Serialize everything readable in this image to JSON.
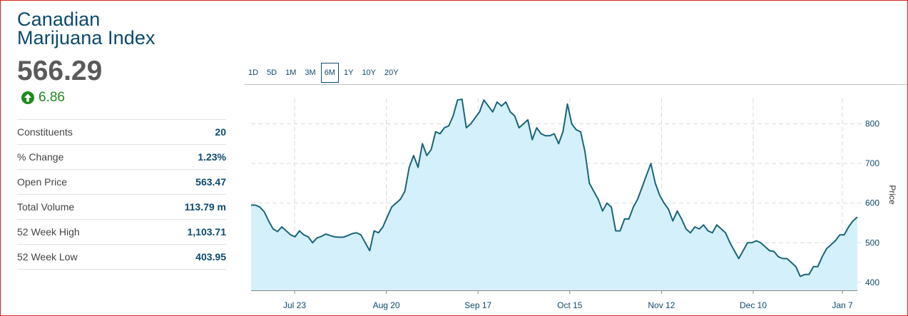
{
  "index": {
    "title_line1": "Canadian",
    "title_line2": "Marijuana Index",
    "price": "566.29",
    "change": "6.86"
  },
  "stats": [
    {
      "label": "Constituents",
      "value": "20"
    },
    {
      "label": "% Change",
      "value": "1.23%"
    },
    {
      "label": "Open Price",
      "value": "563.47"
    },
    {
      "label": "Total Volume",
      "value": "113.79 m"
    },
    {
      "label": "52 Week High",
      "value": "1,103.71"
    },
    {
      "label": "52 Week Low",
      "value": "403.95"
    }
  ],
  "ranges": [
    "1D",
    "5D",
    "1M",
    "3M",
    "6M",
    "1Y",
    "10Y",
    "20Y"
  ],
  "active_range": "6M",
  "colors": {
    "line": "#1a6478",
    "fill": "#d4f0fa",
    "positive": "#1e8a1e",
    "brand": "#0b4a6e"
  },
  "chart_data": {
    "type": "area",
    "ylabel": "Price",
    "ylim": [
      380,
      900
    ],
    "yticks": [
      400,
      500,
      600,
      700,
      800
    ],
    "grid": true,
    "xticks": [
      "Jul 23",
      "Aug 20",
      "Sep 17",
      "Oct 15",
      "Nov 12",
      "Dec 10",
      "Jan 7"
    ],
    "values": [
      595,
      595,
      590,
      578,
      555,
      535,
      528,
      540,
      530,
      520,
      515,
      530,
      520,
      515,
      500,
      512,
      516,
      522,
      518,
      515,
      514,
      514,
      518,
      523,
      525,
      520,
      500,
      480,
      530,
      525,
      540,
      565,
      590,
      600,
      610,
      630,
      690,
      720,
      690,
      750,
      720,
      735,
      780,
      775,
      790,
      795,
      820,
      860,
      862,
      790,
      800,
      815,
      830,
      860,
      845,
      830,
      855,
      845,
      855,
      830,
      820,
      790,
      800,
      810,
      760,
      790,
      775,
      770,
      770,
      775,
      750,
      780,
      850,
      800,
      785,
      780,
      730,
      650,
      630,
      610,
      580,
      600,
      590,
      530,
      530,
      560,
      560,
      590,
      610,
      640,
      670,
      700,
      650,
      620,
      600,
      585,
      555,
      580,
      560,
      535,
      525,
      540,
      535,
      545,
      530,
      525,
      545,
      535,
      525,
      500,
      480,
      460,
      480,
      500,
      500,
      505,
      500,
      490,
      480,
      478,
      465,
      460,
      460,
      450,
      440,
      415,
      420,
      420,
      440,
      440,
      465,
      485,
      495,
      505,
      520,
      520,
      540,
      555,
      565
    ]
  }
}
